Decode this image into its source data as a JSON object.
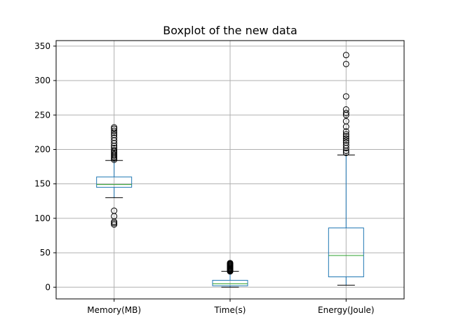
{
  "chart_data": {
    "type": "boxplot",
    "title": "Boxplot of the new data",
    "xlabel": "",
    "ylabel": "",
    "ylim": [
      -17,
      358
    ],
    "y_ticks": [
      0,
      50,
      100,
      150,
      200,
      250,
      300,
      350
    ],
    "grid": true,
    "categories": [
      "Memory(MB)",
      "Time(s)",
      "Energy(Joule)"
    ],
    "boxes": [
      {
        "category": "Memory(MB)",
        "whisker_low": 130,
        "q1": 145,
        "median": 149,
        "q3": 160,
        "whisker_high": 184,
        "outliers": [
          91,
          93,
          95,
          103,
          111,
          185,
          187,
          189,
          191,
          193,
          195,
          197,
          199,
          202,
          205,
          209,
          213,
          217,
          221,
          224,
          227,
          230,
          232
        ]
      },
      {
        "category": "Time(s)",
        "whisker_low": 0,
        "q1": 2,
        "median": 5,
        "q3": 10,
        "whisker_high": 23,
        "outliers": [
          23,
          24,
          25,
          26,
          27,
          28,
          29,
          30,
          31,
          32,
          33,
          34,
          35
        ]
      },
      {
        "category": "Energy(Joule)",
        "whisker_low": 3,
        "q1": 15,
        "median": 46,
        "q3": 86,
        "whisker_high": 192,
        "outliers": [
          195,
          198,
          202,
          206,
          210,
          213,
          216,
          219,
          222,
          226,
          233,
          241,
          250,
          253,
          258,
          277,
          324,
          337
        ]
      }
    ],
    "colors": {
      "box": "#1f77b4",
      "median": "#2ca02c",
      "whisker_cap": "#000000",
      "outlier_edge": "#000000",
      "grid": "#b0b0b0"
    }
  }
}
